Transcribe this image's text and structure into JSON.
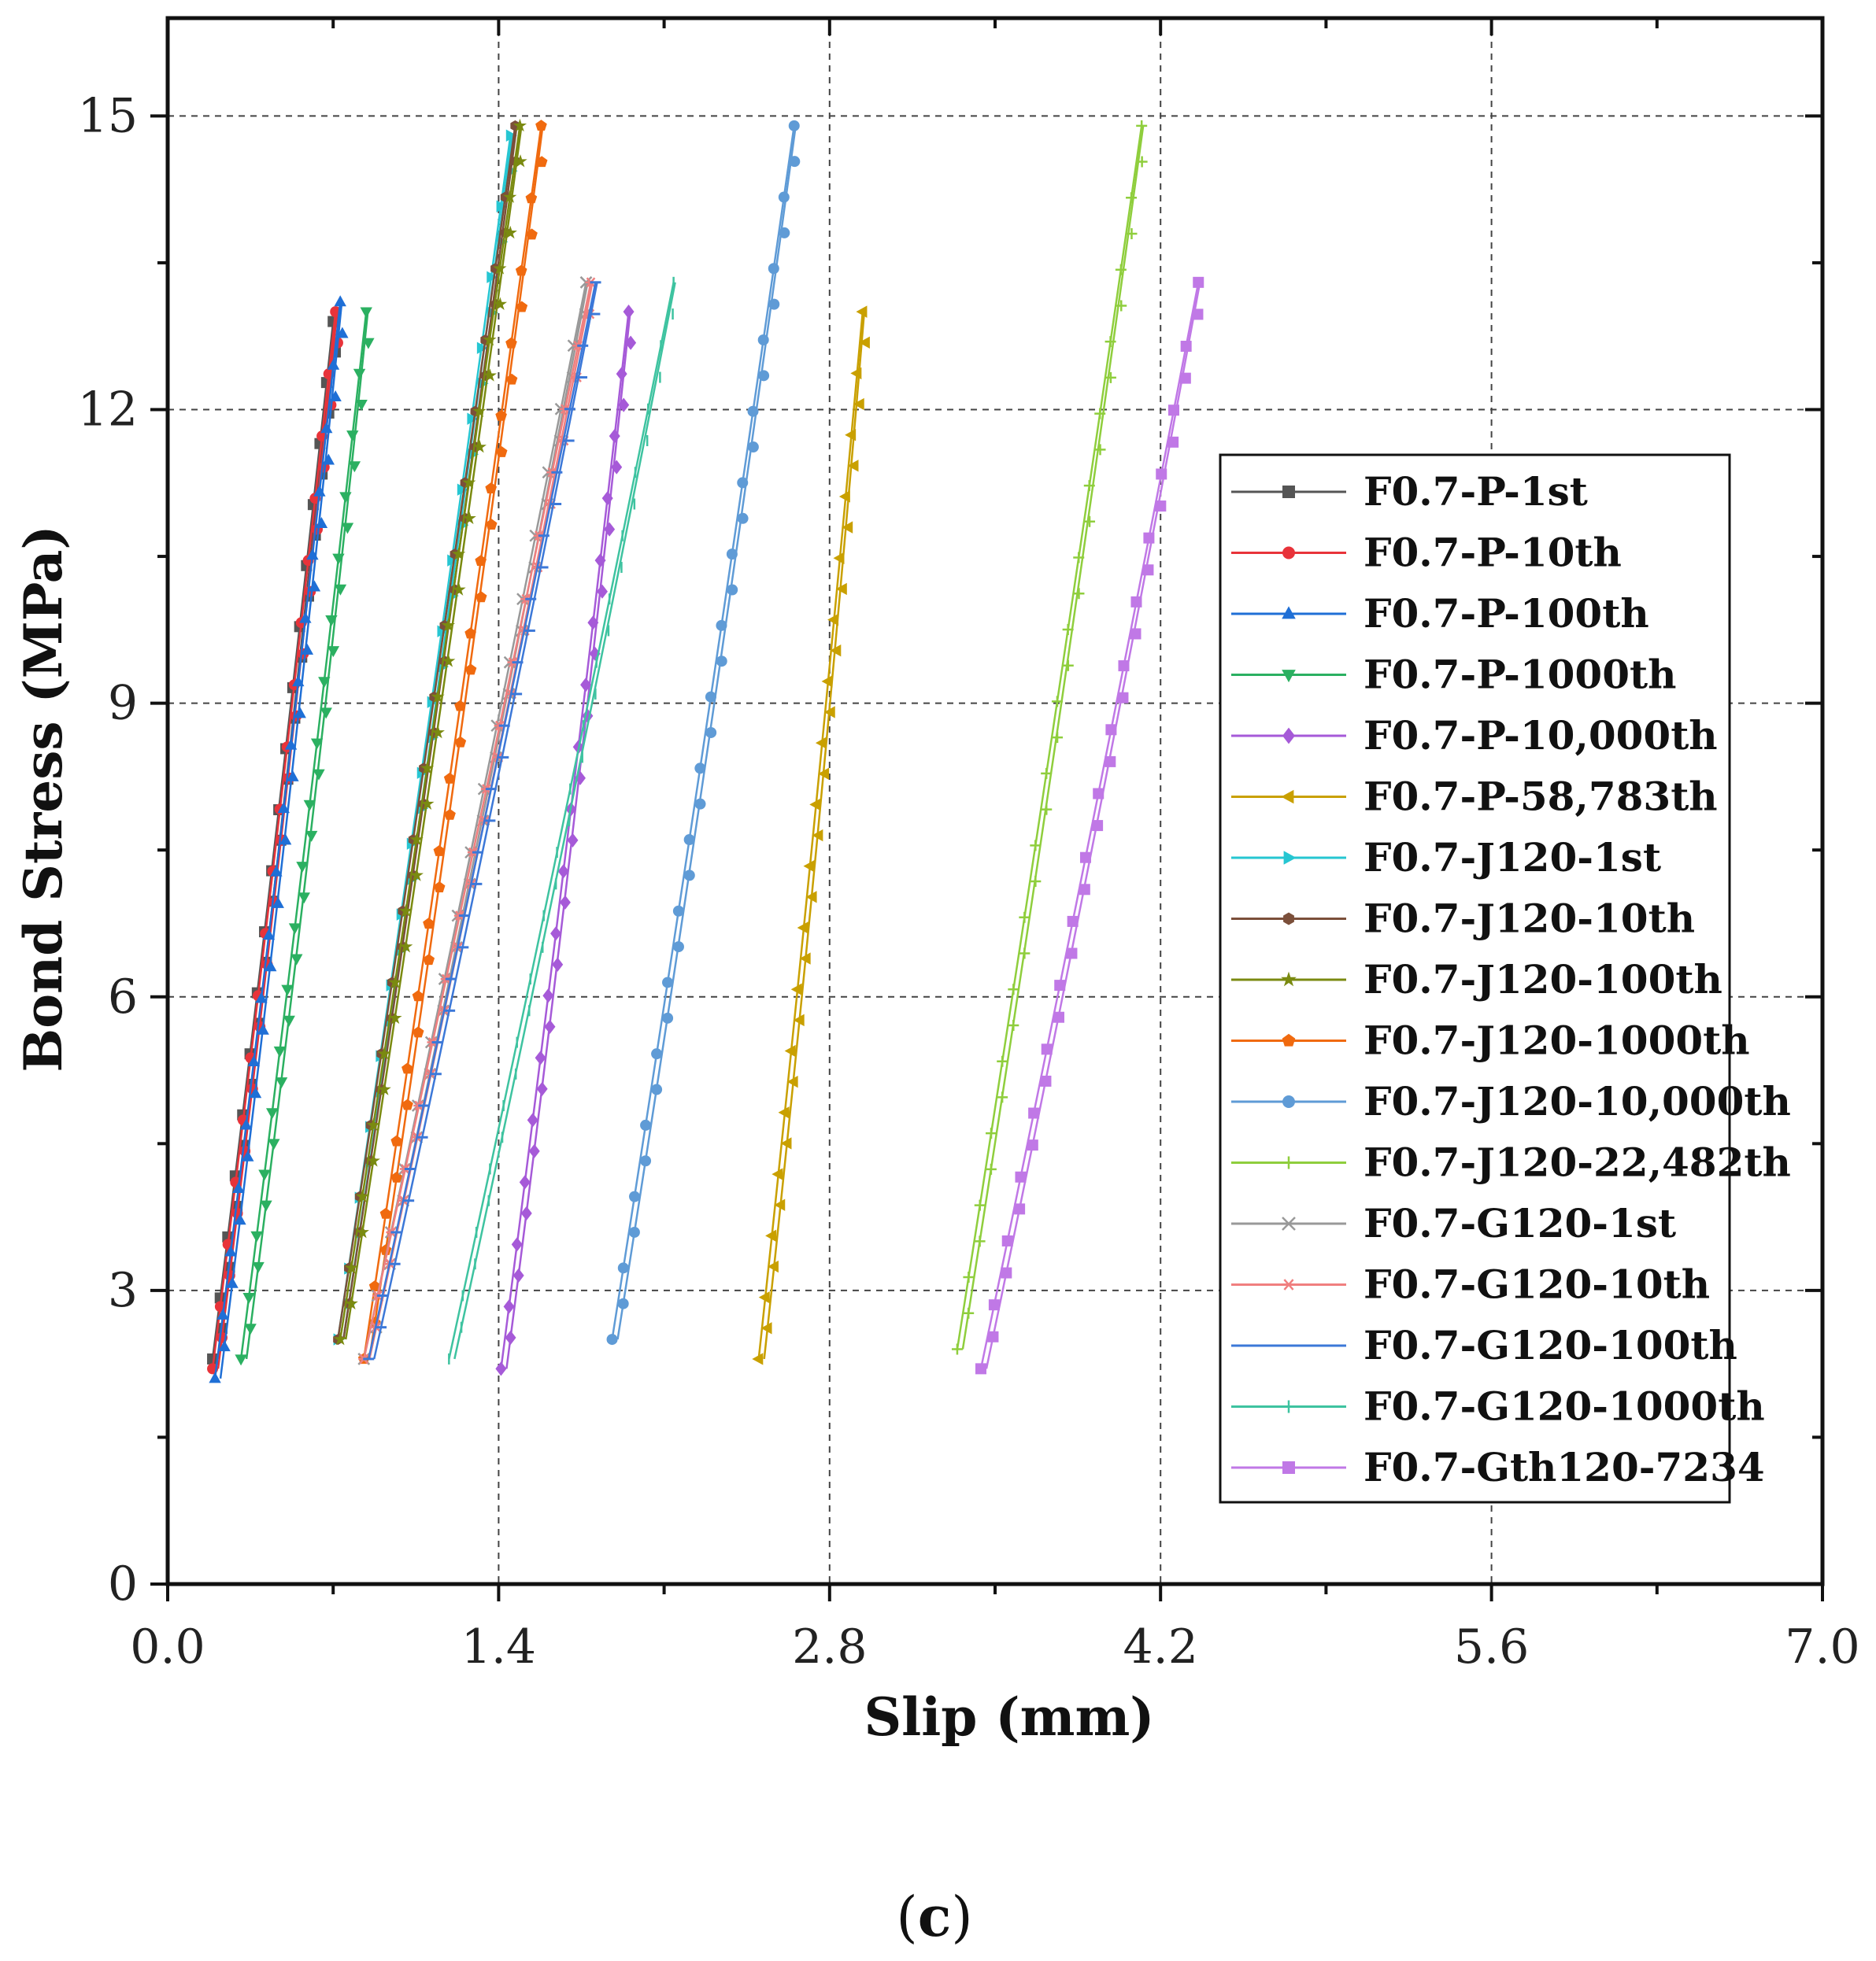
{
  "chart_data": {
    "type": "line",
    "xlabel": "Slip (mm)",
    "ylabel": "Bond Stress (MPa)",
    "xlim": [
      0.0,
      7.0
    ],
    "ylim": [
      0,
      16.0
    ],
    "xticks": [
      0.0,
      1.4,
      2.8,
      4.2,
      5.6,
      7.0
    ],
    "xtick_labels": [
      "0.0",
      "1.4",
      "2.8",
      "4.2",
      "5.6",
      "7.0"
    ],
    "yticks": [
      0,
      3,
      6,
      9,
      12,
      15
    ],
    "ytick_labels": [
      "0",
      "3",
      "6",
      "9",
      "12",
      "15"
    ],
    "grid": true,
    "legend_position": "right",
    "caption": {
      "open": "(",
      "letter": "c",
      "close": ")"
    },
    "series": [
      {
        "name": "F0.7-P-1st",
        "color": "#555555",
        "marker": "square",
        "x": [
          0.19,
          0.7
        ],
        "y": [
          2.3,
          12.9
        ]
      },
      {
        "name": "F0.7-P-10th",
        "color": "#e8333a",
        "marker": "circle",
        "x": [
          0.19,
          0.71
        ],
        "y": [
          2.2,
          13.0
        ]
      },
      {
        "name": "F0.7-P-100th",
        "color": "#1f6fd6",
        "marker": "triangle-up",
        "x": [
          0.2,
          0.73
        ],
        "y": [
          2.1,
          13.1
        ]
      },
      {
        "name": "F0.7-P-1000th",
        "color": "#2bb061",
        "marker": "triangle-down",
        "x": [
          0.31,
          0.84
        ],
        "y": [
          2.3,
          13.0
        ]
      },
      {
        "name": "F0.7-P-10,000th",
        "color": "#a65ad8",
        "marker": "diamond",
        "x": [
          1.41,
          1.95
        ],
        "y": [
          2.2,
          13.0
        ]
      },
      {
        "name": "F0.7-P-58,783th",
        "color": "#c9a000",
        "marker": "triangle-left",
        "x": [
          2.5,
          2.94
        ],
        "y": [
          2.3,
          13.0
        ]
      },
      {
        "name": "F0.7-J120-1st",
        "color": "#26c6d2",
        "marker": "triangle-right",
        "x": [
          0.72,
          1.45
        ],
        "y": [
          2.5,
          14.8
        ]
      },
      {
        "name": "F0.7-J120-10th",
        "color": "#7b4f3a",
        "marker": "hexagon",
        "x": [
          0.72,
          1.47
        ],
        "y": [
          2.5,
          14.9
        ]
      },
      {
        "name": "F0.7-J120-100th",
        "color": "#7a8a10",
        "marker": "star",
        "x": [
          0.73,
          1.49
        ],
        "y": [
          2.5,
          14.9
        ]
      },
      {
        "name": "F0.7-J120-1000th",
        "color": "#f06a0f",
        "marker": "pentagon",
        "x": [
          0.83,
          1.58
        ],
        "y": [
          2.3,
          14.9
        ]
      },
      {
        "name": "F0.7-J120-10,000th",
        "color": "#5f9bd6",
        "marker": "circle",
        "x": [
          1.88,
          2.65
        ],
        "y": [
          2.5,
          14.9
        ]
      },
      {
        "name": "F0.7-J120-22,482th",
        "color": "#8fce3d",
        "marker": "plus",
        "x": [
          3.34,
          4.12
        ],
        "y": [
          2.4,
          14.9
        ]
      },
      {
        "name": "F0.7-G120-1st",
        "color": "#999999",
        "marker": "x",
        "x": [
          0.83,
          1.77
        ],
        "y": [
          2.3,
          13.3
        ]
      },
      {
        "name": "F0.7-G120-10th",
        "color": "#f07f7f",
        "marker": "asterisk",
        "x": [
          0.83,
          1.79
        ],
        "y": [
          2.3,
          13.3
        ]
      },
      {
        "name": "F0.7-G120-100th",
        "color": "#3c78d8",
        "marker": "dash",
        "x": [
          0.85,
          1.81
        ],
        "y": [
          2.3,
          13.3
        ]
      },
      {
        "name": "F0.7-G120-1000th",
        "color": "#3ec3a0",
        "marker": "vline",
        "x": [
          1.19,
          2.14
        ],
        "y": [
          2.3,
          13.3
        ]
      },
      {
        "name": "F0.7-Gth120-7234",
        "color": "#c078e6",
        "marker": "square",
        "x": [
          3.44,
          4.36
        ],
        "y": [
          2.2,
          13.3
        ]
      }
    ]
  }
}
